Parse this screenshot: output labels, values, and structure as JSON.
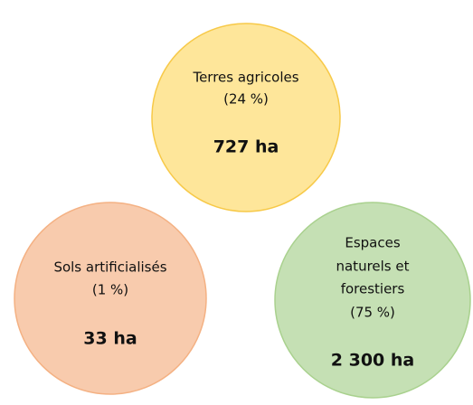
{
  "nodes": [
    {
      "label": [
        "Terres agricoles"
      ],
      "share": "(24 %)",
      "area": "727 ha"
    },
    {
      "label": [
        "Sols artificialisés"
      ],
      "share": "(1 %)",
      "area": "33 ha"
    },
    {
      "label": [
        "Espaces",
        "naturels et",
        "forestiers"
      ],
      "share": "(75 %)",
      "area": "2 300 ha"
    }
  ]
}
